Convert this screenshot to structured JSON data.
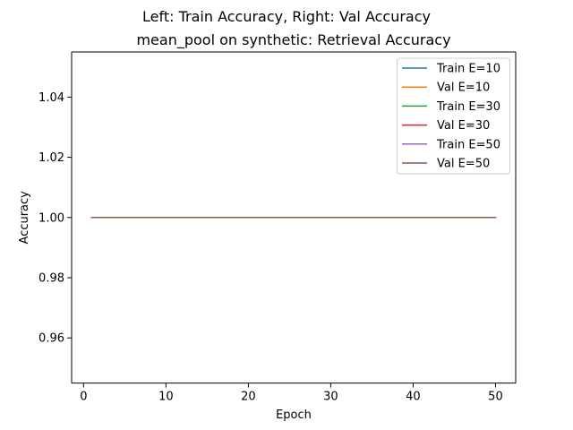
{
  "figure": {
    "suptitle": "Left: Train Accuracy, Right: Val Accuracy"
  },
  "chart_data": {
    "type": "line",
    "title": "mean_pool on synthetic: Retrieval Accuracy",
    "xlabel": "Epoch",
    "ylabel": "Accuracy",
    "xlim": [
      -1.45,
      52.45
    ],
    "ylim": [
      0.945,
      1.055
    ],
    "xticks": [
      0,
      10,
      20,
      30,
      40,
      50
    ],
    "xtick_labels": [
      "0",
      "10",
      "20",
      "30",
      "40",
      "50"
    ],
    "yticks": [
      0.96,
      0.98,
      1.0,
      1.02,
      1.04
    ],
    "ytick_labels": [
      "0.96",
      "0.98",
      "1.00",
      "1.02",
      "1.04"
    ],
    "grid": false,
    "legend_position": "top-right",
    "series": [
      {
        "name": "Train E=10",
        "color": "#1f77b4",
        "x": [
          1,
          10
        ],
        "y": [
          1.0,
          1.0
        ]
      },
      {
        "name": "Val E=10",
        "color": "#ff7f0e",
        "x": [
          1,
          10
        ],
        "y": [
          1.0,
          1.0
        ]
      },
      {
        "name": "Train E=30",
        "color": "#2ca02c",
        "x": [
          1,
          30
        ],
        "y": [
          1.0,
          1.0
        ]
      },
      {
        "name": "Val E=30",
        "color": "#d62728",
        "x": [
          1,
          30
        ],
        "y": [
          1.0,
          1.0
        ]
      },
      {
        "name": "Train E=50",
        "color": "#9467bd",
        "x": [
          1,
          50
        ],
        "y": [
          1.0,
          1.0
        ]
      },
      {
        "name": "Val E=50",
        "color": "#8c564b",
        "x": [
          1,
          50
        ],
        "y": [
          1.0,
          1.0
        ]
      }
    ]
  }
}
